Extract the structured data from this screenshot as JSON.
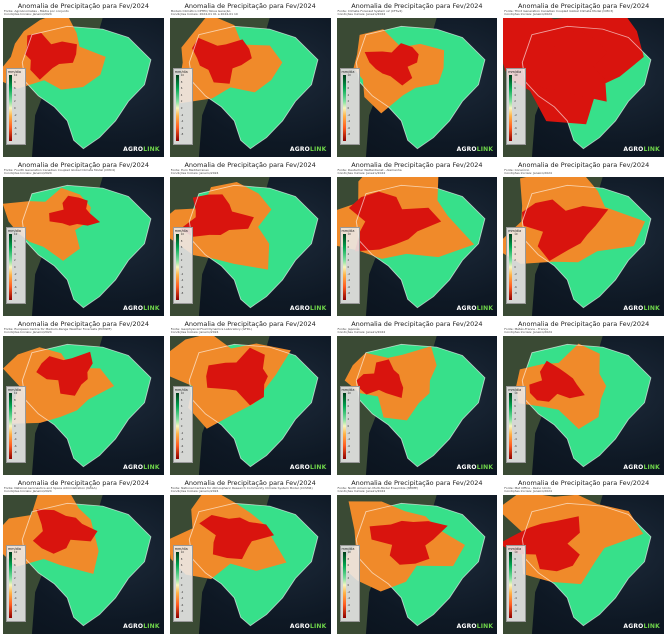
{
  "panel_title": "Anomalia de Precipitação para Fev/2024",
  "legend_title": "mm/dia",
  "legend_ticks": [
    "10",
    "8",
    "6",
    "4",
    "2",
    "0",
    "-2",
    "-4",
    "-6",
    "-8"
  ],
  "brand": {
    "part1": "AGRO",
    "part2": "LINK"
  },
  "palette": {
    "dry_strong": "#d9140e",
    "dry": "#f08a2a",
    "mild": "#f6c38a",
    "wet": "#37e08a",
    "wet_mid": "#4cd67e",
    "ocean": "#0e1824"
  },
  "panels": [
    {
      "source": "Fonte: AgroAnomalias - Média por conjunto",
      "sub": "Condições Iniciais: Janeiro/2024",
      "dry": 0.45,
      "variant": 0
    },
    {
      "source": "Modelo Climático CPTEC/ Nova Geração",
      "sub": "Condições Iniciais: 2024-01 01 a 2024-01 10",
      "dry": 0.5,
      "variant": 1
    },
    {
      "source": "Fonte: Climate Forecast System v2 (CFSv2)",
      "sub": "Condições Iniciais: Janeiro/2024",
      "dry": 0.4,
      "variant": 2
    },
    {
      "source": "Fonte: Third Generation Canadian Coupled Global Climate Model (CMC3)",
      "sub": "Condições Iniciais: Janeiro/2024",
      "dry": 0.95,
      "variant": 3
    },
    {
      "source": "Fonte: Fourth Generation Canadian Coupled Global Climate Model (CMC4)",
      "sub": "Condições Iniciais: Janeiro/2024",
      "dry": 0.3,
      "variant": 4
    },
    {
      "source": "Fonte: Euro Mediterraneo",
      "sub": "Condições Iniciais: Janeiro/2024",
      "dry": 0.55,
      "variant": 5
    },
    {
      "source": "Fonte: Deutscher Wetterdienst - Alemanha",
      "sub": "Condições Iniciais: Janeiro/2024",
      "dry": 0.8,
      "variant": 6
    },
    {
      "source": "Fonte: Consórcio",
      "sub": "Condições Iniciais: Janeiro/2024",
      "dry": 0.75,
      "variant": 7
    },
    {
      "source": "Fonte: European Centre for Medium-Range Weather Forecasts (ECMWF)",
      "sub": "Condições Iniciais: Janeiro/2024",
      "dry": 0.45,
      "variant": 8
    },
    {
      "source": "Fonte: Geophysical Fluid Dynamics Laboratory (GFDL)",
      "sub": "Condições Iniciais: Janeiro/2024",
      "dry": 0.6,
      "variant": 9
    },
    {
      "source": "Fonte: Japonês",
      "sub": "Condições Iniciais: Janeiro/2024",
      "dry": 0.35,
      "variant": 10
    },
    {
      "source": "Fonte: Météo-France - França",
      "sub": "Condições Iniciais: Janeiro/2024",
      "dry": 0.4,
      "variant": 11
    },
    {
      "source": "Fonte: National Aeronautics and Space Administration (NASA)",
      "sub": "Condições Iniciais: Janeiro/2024",
      "dry": 0.5,
      "variant": 12
    },
    {
      "source": "Fonte: National Centers for Atmospheric Research Community Climate System Model (CCSM4)",
      "sub": "Condições Iniciais: Janeiro/2024",
      "dry": 0.55,
      "variant": 13
    },
    {
      "source": "Fonte: North American Multi-Model Ensemble (NMME)",
      "sub": "Condições Iniciais: Janeiro/2024",
      "dry": 0.6,
      "variant": 14
    },
    {
      "source": "Fonte: Met Office - Reino Unido",
      "sub": "Condições Iniciais: Janeiro/2024",
      "dry": 0.7,
      "variant": 15
    }
  ]
}
